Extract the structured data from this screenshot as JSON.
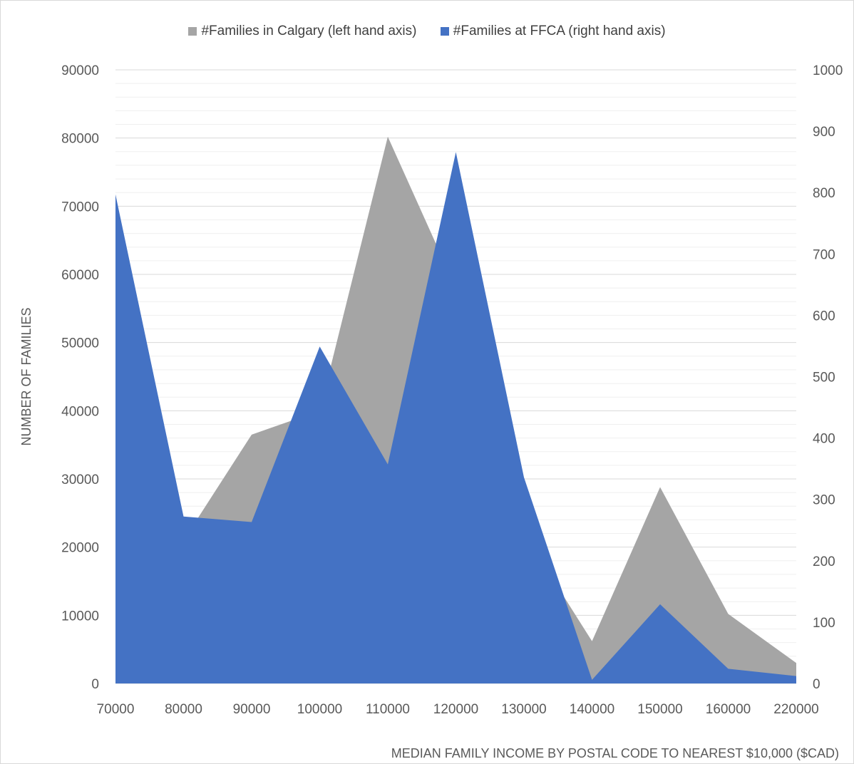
{
  "chart_data": {
    "type": "area",
    "title": "",
    "x": [
      70000,
      80000,
      90000,
      100000,
      110000,
      120000,
      130000,
      140000,
      150000,
      160000,
      220000
    ],
    "xlabel": "MEDIAN FAMILY INCOME BY POSTAL CODE TO NEAREST $10,000 ($CAD)",
    "ylabel": "NUMBER OF FAMILIES",
    "ylim": [
      0,
      90000
    ],
    "y2lim": [
      0,
      1000
    ],
    "y_ticks": [
      0,
      10000,
      20000,
      30000,
      40000,
      50000,
      60000,
      70000,
      80000,
      90000
    ],
    "y2_ticks": [
      0,
      100,
      200,
      300,
      400,
      500,
      600,
      700,
      800,
      900,
      1000
    ],
    "grid": true,
    "legend_position": "top",
    "series": [
      {
        "name": "#Families in Calgary (left hand axis)",
        "axis": "left",
        "color": "#a5a5a5",
        "values": [
          21000,
          21000,
          36500,
          40000,
          80200,
          58000,
          22000,
          6200,
          28800,
          10200,
          3000
        ]
      },
      {
        "name": "#Families at FFCA (right hand axis)",
        "axis": "right",
        "color": "#4472c4",
        "values": [
          797,
          272,
          263,
          549,
          357,
          866,
          336,
          6,
          129,
          24,
          12
        ]
      }
    ]
  }
}
